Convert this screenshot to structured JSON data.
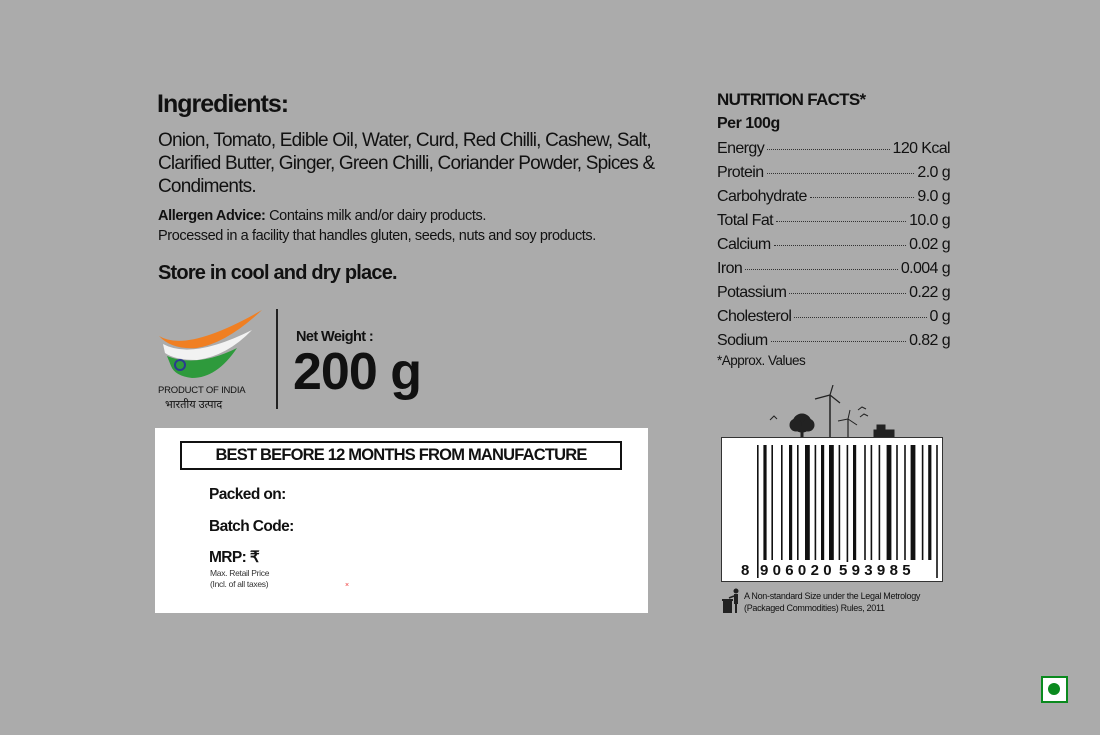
{
  "ingredients": {
    "title": "Ingredients:",
    "text": "Onion, Tomato, Edible Oil, Water, Curd, Red Chilli, Cashew, Salt, Clarified Butter, Ginger, Green Chilli, Coriander Powder, Spices & Condiments.",
    "allergen_label": "Allergen Advice:",
    "allergen_text": " Contains milk and/or dairy products.",
    "facility_text": "Processed in a facility that handles gluten, seeds, nuts and soy products.",
    "storage": "Store in cool and dry place."
  },
  "origin": {
    "english": "PRODUCT OF INDIA",
    "hindi": "भारतीय उत्पाद",
    "colors": {
      "saffron": "#f07f22",
      "white": "#f2f2f2",
      "green": "#2e9a3c",
      "chakra": "#2a3b8f"
    }
  },
  "net_weight": {
    "label": "Net Weight :",
    "value": "200 g"
  },
  "pack_box": {
    "best_before": "BEST BEFORE 12 MONTHS FROM MANUFACTURE",
    "packed_on": "Packed on:",
    "batch_code": "Batch Code:",
    "mrp": "MRP: ₹",
    "mrp_sub1": "Max. Retail Price",
    "mrp_sub2": "(Incl. of all taxes)",
    "mark": "×"
  },
  "nutrition": {
    "title": "NUTRITION FACTS*",
    "per": "Per 100g",
    "rows": [
      {
        "label": "Energy",
        "value": "120 Kcal"
      },
      {
        "label": "Protein",
        "value": "2.0 g"
      },
      {
        "label": "Carbohydrate",
        "value": "9.0 g"
      },
      {
        "label": "Total Fat",
        "value": "10.0 g"
      },
      {
        "label": "Calcium",
        "value": "0.02 g"
      },
      {
        "label": "Iron",
        "value": "0.004 g"
      },
      {
        "label": "Potassium",
        "value": "0.22 g"
      },
      {
        "label": "Cholesterol",
        "value": "0 g"
      },
      {
        "label": "Sodium",
        "value": "0.82 g"
      }
    ],
    "note": "*Approx. Values"
  },
  "barcode": {
    "first": "8",
    "left": "906020",
    "right": "593985"
  },
  "legal": {
    "line1": "A Non-standard Size under the Legal Metrology",
    "line2": "(Packaged Commodities) Rules, 2011"
  },
  "veg_mark": {
    "color": "#0a8a1e"
  }
}
